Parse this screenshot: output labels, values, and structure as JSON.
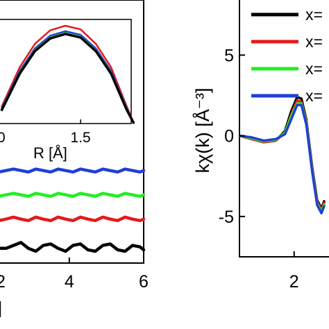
{
  "chart_data": [
    {
      "panel": "left-main",
      "type": "line",
      "xlim": [
        2.1,
        6
      ],
      "x_ticks": [
        "4",
        "6"
      ],
      "x_tick_values": [
        4,
        6
      ],
      "partial_x_tick": "2",
      "xlabel_fragment": "]",
      "series": [
        {
          "color": "#000000",
          "x": [
            2.1,
            2.3,
            2.5,
            2.7,
            2.9,
            3.1,
            3.3,
            3.5,
            3.7,
            3.9,
            4.1,
            4.3,
            4.5,
            4.7,
            4.9,
            5.1,
            5.3,
            5.5,
            5.7,
            5.9,
            6.0
          ],
          "y": [
            0.1,
            0.1,
            0.2,
            0.3,
            0.1,
            0.0,
            0.2,
            0.25,
            0.1,
            0.0,
            0.2,
            0.25,
            0.05,
            0.0,
            0.2,
            0.25,
            0.05,
            0.0,
            0.2,
            0.15,
            0.05
          ]
        },
        {
          "color": "#e41a1c",
          "x": [
            2.1,
            2.3,
            2.5,
            2.7,
            2.9,
            3.1,
            3.3,
            3.5,
            3.7,
            3.9,
            4.1,
            4.3,
            4.5,
            4.7,
            4.9,
            5.1,
            5.3,
            5.5,
            5.7,
            5.9,
            6.0
          ],
          "y": [
            0.5,
            0.55,
            0.62,
            0.55,
            0.5,
            0.62,
            0.55,
            0.5,
            0.62,
            0.55,
            0.5,
            0.62,
            0.55,
            0.5,
            0.62,
            0.55,
            0.5,
            0.62,
            0.55,
            0.5,
            0.55
          ]
        },
        {
          "color": "#22ee22",
          "x": [
            2.1,
            2.3,
            2.5,
            2.7,
            2.9,
            3.1,
            3.3,
            3.5,
            3.7,
            3.9,
            4.1,
            4.3,
            4.5,
            4.7,
            4.9,
            5.1,
            5.3,
            5.5,
            5.7,
            5.9,
            6.0
          ],
          "y": [
            0.9,
            0.95,
            1.0,
            0.95,
            0.9,
            1.0,
            0.95,
            0.9,
            1.0,
            0.95,
            0.9,
            1.0,
            0.95,
            0.9,
            1.0,
            0.95,
            0.9,
            1.0,
            0.95,
            0.9,
            0.95
          ]
        },
        {
          "color": "#1f3fd6",
          "x": [
            2.1,
            2.3,
            2.5,
            2.7,
            2.9,
            3.1,
            3.3,
            3.5,
            3.7,
            3.9,
            4.1,
            4.3,
            4.5,
            4.7,
            4.9,
            5.1,
            5.3,
            5.5,
            5.7,
            5.9,
            6.0
          ],
          "y": [
            1.3,
            1.35,
            1.4,
            1.35,
            1.3,
            1.4,
            1.35,
            1.3,
            1.4,
            1.35,
            1.3,
            1.4,
            1.35,
            1.3,
            1.4,
            1.35,
            1.3,
            1.4,
            1.35,
            1.3,
            1.35
          ]
        }
      ]
    },
    {
      "panel": "left-inset",
      "type": "line",
      "xlim": [
        0.98,
        1.85
      ],
      "ylim": [
        0,
        1.15
      ],
      "x_ticks": [
        "1.5"
      ],
      "x_tick_values": [
        1.5
      ],
      "partial_x_tick": "0",
      "xlabel": "R [Å]",
      "series": [
        {
          "color": "#e41a1c",
          "x": [
            0.98,
            1.1,
            1.2,
            1.3,
            1.4,
            1.5,
            1.6,
            1.7,
            1.8,
            1.85
          ],
          "y": [
            0.18,
            0.62,
            0.88,
            1.03,
            1.08,
            1.04,
            0.88,
            0.62,
            0.2,
            0.0
          ]
        },
        {
          "color": "#1f3fd6",
          "x": [
            0.98,
            1.1,
            1.2,
            1.3,
            1.4,
            1.5,
            1.6,
            1.7,
            1.8,
            1.85
          ],
          "y": [
            0.16,
            0.58,
            0.83,
            0.97,
            1.02,
            0.98,
            0.83,
            0.58,
            0.18,
            0.0
          ]
        },
        {
          "color": "#22ee22",
          "x": [
            0.98,
            1.1,
            1.2,
            1.3,
            1.4,
            1.5,
            1.6,
            1.7,
            1.8,
            1.85
          ],
          "y": [
            0.15,
            0.56,
            0.81,
            0.95,
            1.0,
            0.96,
            0.81,
            0.56,
            0.17,
            0.0
          ]
        },
        {
          "color": "#000000",
          "x": [
            0.98,
            1.1,
            1.2,
            1.3,
            1.4,
            1.5,
            1.6,
            1.7,
            1.8,
            1.85
          ],
          "y": [
            0.14,
            0.55,
            0.8,
            0.94,
            0.99,
            0.95,
            0.8,
            0.55,
            0.16,
            0.0
          ]
        }
      ]
    },
    {
      "panel": "right",
      "type": "line",
      "xlim": [
        1.1,
        2.7
      ],
      "ylim": [
        -7.5,
        8.5
      ],
      "y_ticks": [
        "5",
        "0",
        "-5"
      ],
      "y_tick_values": [
        5,
        0,
        -5
      ],
      "x_ticks": [
        "2"
      ],
      "x_tick_values": [
        2
      ],
      "ylabel": "kχ(k) [Å⁻³]",
      "legend": {
        "placement": "top-right",
        "entries": [
          {
            "label": "x=",
            "color": "#000000"
          },
          {
            "label": "x=",
            "color": "#e41a1c"
          },
          {
            "label": "x=",
            "color": "#22ee22"
          },
          {
            "label": "x=",
            "color": "#1f3fd6"
          }
        ]
      },
      "series": [
        {
          "color": "#000000",
          "x": [
            1.1,
            1.3,
            1.5,
            1.7,
            1.85,
            1.95,
            2.05,
            2.12,
            2.2,
            2.3,
            2.38,
            2.45,
            2.5
          ],
          "y": [
            0.0,
            -0.2,
            -0.4,
            -0.3,
            0.3,
            1.5,
            2.4,
            2.3,
            1.0,
            -2.0,
            -4.0,
            -4.5,
            -4.0
          ]
        },
        {
          "color": "#e41a1c",
          "x": [
            1.1,
            1.3,
            1.5,
            1.7,
            1.85,
            1.95,
            2.05,
            2.12,
            2.2,
            2.3,
            2.38,
            2.45,
            2.5
          ],
          "y": [
            0.0,
            -0.2,
            -0.4,
            -0.3,
            0.2,
            1.3,
            2.2,
            2.1,
            0.9,
            -2.1,
            -4.1,
            -4.6,
            -4.1
          ]
        },
        {
          "color": "#22ee22",
          "x": [
            1.1,
            1.3,
            1.5,
            1.7,
            1.85,
            1.95,
            2.05,
            2.12,
            2.2,
            2.3,
            2.38,
            2.45,
            2.5
          ],
          "y": [
            0.0,
            -0.15,
            -0.35,
            -0.25,
            0.2,
            1.2,
            2.0,
            2.0,
            0.8,
            -2.2,
            -4.2,
            -4.7,
            -4.2
          ]
        },
        {
          "color": "#1f3fd6",
          "x": [
            1.1,
            1.3,
            1.5,
            1.7,
            1.85,
            1.95,
            2.05,
            2.12,
            2.2,
            2.3,
            2.38,
            2.45,
            2.5
          ],
          "y": [
            0.0,
            -0.1,
            -0.3,
            -0.2,
            0.1,
            1.0,
            1.9,
            1.9,
            0.7,
            -2.3,
            -4.3,
            -4.8,
            -4.3
          ]
        }
      ]
    }
  ]
}
